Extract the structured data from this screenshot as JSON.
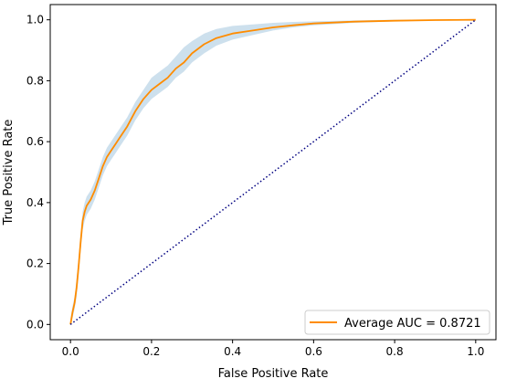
{
  "chart_data": {
    "type": "line",
    "title": "",
    "xlabel": "False Positive Rate",
    "ylabel": "True Positive Rate",
    "xlim": [
      -0.05,
      1.05
    ],
    "ylim": [
      -0.05,
      1.05
    ],
    "xticks": [
      0.0,
      0.2,
      0.4,
      0.6,
      0.8,
      1.0
    ],
    "yticks": [
      0.0,
      0.2,
      0.4,
      0.6,
      0.8,
      1.0
    ],
    "xtick_labels": [
      "0.0",
      "0.2",
      "0.4",
      "0.6",
      "0.8",
      "1.0"
    ],
    "ytick_labels": [
      "0.0",
      "0.2",
      "0.4",
      "0.6",
      "0.8",
      "1.0"
    ],
    "grid": false,
    "legend_position": "lower-right",
    "series": [
      {
        "name": "Average AUC = 0.8721",
        "color": "#ff8c00",
        "style": "solid",
        "x": [
          0.0,
          0.005,
          0.01,
          0.015,
          0.02,
          0.025,
          0.03,
          0.035,
          0.04,
          0.05,
          0.06,
          0.07,
          0.08,
          0.09,
          0.1,
          0.12,
          0.14,
          0.16,
          0.18,
          0.2,
          0.22,
          0.24,
          0.26,
          0.28,
          0.3,
          0.33,
          0.36,
          0.4,
          0.45,
          0.5,
          0.55,
          0.6,
          0.7,
          0.8,
          0.9,
          1.0
        ],
        "y": [
          0.0,
          0.04,
          0.07,
          0.12,
          0.19,
          0.27,
          0.34,
          0.37,
          0.39,
          0.41,
          0.44,
          0.48,
          0.52,
          0.55,
          0.57,
          0.61,
          0.65,
          0.7,
          0.74,
          0.77,
          0.79,
          0.81,
          0.84,
          0.86,
          0.89,
          0.92,
          0.94,
          0.955,
          0.965,
          0.975,
          0.982,
          0.988,
          0.994,
          0.997,
          0.999,
          1.0
        ],
        "band_upper": [
          0.02,
          0.06,
          0.09,
          0.15,
          0.22,
          0.3,
          0.37,
          0.4,
          0.42,
          0.44,
          0.47,
          0.51,
          0.55,
          0.58,
          0.6,
          0.64,
          0.68,
          0.73,
          0.77,
          0.81,
          0.83,
          0.85,
          0.88,
          0.91,
          0.93,
          0.955,
          0.97,
          0.98,
          0.985,
          0.99,
          0.993,
          0.995,
          0.998,
          1.0,
          1.0,
          1.0
        ],
        "band_lower": [
          0.0,
          0.02,
          0.05,
          0.09,
          0.16,
          0.24,
          0.31,
          0.34,
          0.36,
          0.38,
          0.41,
          0.45,
          0.49,
          0.52,
          0.54,
          0.58,
          0.62,
          0.67,
          0.71,
          0.74,
          0.76,
          0.78,
          0.81,
          0.83,
          0.86,
          0.89,
          0.915,
          0.935,
          0.95,
          0.965,
          0.975,
          0.982,
          0.99,
          0.995,
          0.998,
          1.0
        ],
        "band_color": "#b8d3e6"
      },
      {
        "name": "",
        "color": "#000080",
        "style": "dotted",
        "x": [
          0.0,
          1.0
        ],
        "y": [
          0.0,
          1.0
        ]
      }
    ]
  }
}
